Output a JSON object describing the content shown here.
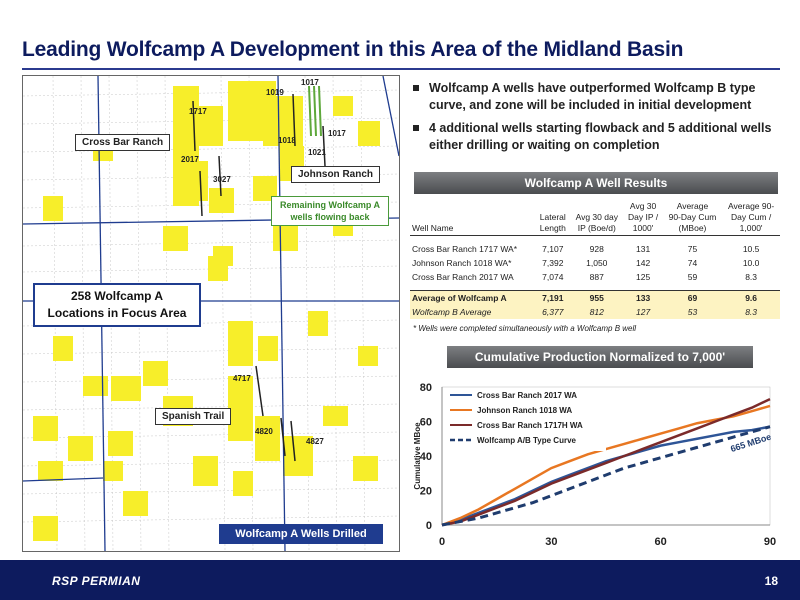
{
  "title": "Leading Wolfcamp A Development in this Area of the Midland Basin",
  "bullets": [
    "Wolfcamp A wells have outperformed Wolfcamp B type curve, and zone will be included in initial development",
    "4 additional wells starting flowback and 5 additional wells either drilling or waiting on completion"
  ],
  "map": {
    "labels": {
      "cross_bar": "Cross Bar Ranch",
      "johnson": "Johnson Ranch",
      "spanish": "Spanish Trail",
      "locations": "258 Wolfcamp A",
      "locations2": "Locations in Focus Area",
      "remaining": "Remaining Wolfcamp A",
      "remaining2": "wells flowing back",
      "drilled": "Wolfcamp A Wells Drilled"
    },
    "wells": [
      "1017",
      "1019",
      "1717",
      "1018",
      "1017",
      "1021",
      "2017",
      "3027",
      "4717",
      "4820",
      "4827"
    ]
  },
  "table_header": "Wolfcamp A Well Results",
  "table": {
    "columns": [
      "Well Name",
      "Lateral Length",
      "Avg 30 day IP (Boe/d)",
      "Avg 30 Day IP / 1000'",
      "Average 90-Day Cum (MBoe)",
      "Average 90-Day Cum / 1,000'"
    ],
    "col1": [
      "Well Name"
    ],
    "col2a": "Lateral",
    "col2b": "Length",
    "col3a": "Avg 30 day",
    "col3b": "IP (Boe/d)",
    "col4a": "Avg 30",
    "col4b": "Day IP /",
    "col4c": "1000'",
    "col5a": "Average",
    "col5b": "90-Day Cum",
    "col5c": "(MBoe)",
    "col6a": "Average 90-",
    "col6b": "Day Cum /",
    "col6c": "1,000'",
    "rows": [
      [
        "Cross Bar Ranch 1717 WA*",
        "7,107",
        "928",
        "131",
        "75",
        "10.5"
      ],
      [
        "Johnson Ranch 1018 WA*",
        "7,392",
        "1,050",
        "142",
        "74",
        "10.0"
      ],
      [
        "Cross Bar Ranch 2017 WA",
        "7,074",
        "887",
        "125",
        "59",
        "8.3"
      ]
    ],
    "average": [
      "Average of Wolfcamp A",
      "7,191",
      "955",
      "133",
      "69",
      "9.6"
    ],
    "type_curve": [
      "Wolfcamp B Average",
      "6,377",
      "812",
      "127",
      "53",
      "8.3"
    ],
    "footnote": "* Wells were completed simultaneously with a Wolfcamp B well"
  },
  "chart_header": "Cumulative Production Normalized to 7,000'",
  "chart_data": {
    "type": "line",
    "title": "Cumulative Production Normalized to 7,000'",
    "xlabel": "",
    "ylabel": "Cumulative MBoe",
    "xlim": [
      0,
      90
    ],
    "ylim": [
      0,
      80
    ],
    "xticks": [
      0,
      30,
      60,
      90
    ],
    "yticks": [
      0,
      20,
      40,
      60,
      80
    ],
    "annotation": "665 MBoe",
    "legend_position": "top-left",
    "series": [
      {
        "name": "Cross Bar Ranch 2017 WA",
        "color": "#2e5597",
        "dash": false,
        "x": [
          0,
          5,
          10,
          15,
          20,
          25,
          30,
          35,
          40,
          45,
          50,
          55,
          60,
          65,
          70,
          75,
          80,
          85,
          90
        ],
        "y": [
          0,
          3,
          7,
          11,
          15,
          20,
          25,
          29,
          33,
          37,
          40,
          43,
          46,
          48,
          50,
          52,
          54,
          55,
          57
        ]
      },
      {
        "name": "Johnson Ranch 1018 WA",
        "color": "#e87722",
        "dash": false,
        "x": [
          0,
          5,
          10,
          15,
          20,
          25,
          30,
          35,
          40,
          45,
          50,
          55,
          60,
          65,
          70,
          75,
          80,
          85,
          90
        ],
        "y": [
          0,
          4,
          9,
          15,
          21,
          27,
          33,
          37,
          41,
          44,
          47,
          50,
          53,
          56,
          59,
          61,
          63,
          66,
          69
        ]
      },
      {
        "name": "Cross Bar Ranch 1717H WA",
        "color": "#7b2a2a",
        "dash": false,
        "x": [
          0,
          5,
          10,
          15,
          20,
          25,
          30,
          35,
          40,
          45,
          50,
          55,
          60,
          65,
          70,
          75,
          80,
          85,
          90
        ],
        "y": [
          0,
          2,
          6,
          10,
          14,
          19,
          24,
          28,
          32,
          36,
          40,
          44,
          48,
          52,
          56,
          60,
          64,
          68,
          73
        ]
      },
      {
        "name": "Wolfcamp A/B Type Curve",
        "color": "#1f3c6e",
        "dash": true,
        "x": [
          0,
          5,
          10,
          15,
          20,
          25,
          30,
          35,
          40,
          45,
          50,
          55,
          60,
          65,
          70,
          75,
          80,
          85,
          90
        ],
        "y": [
          0,
          2,
          4,
          7,
          10,
          13,
          17,
          21,
          25,
          29,
          33,
          36,
          39,
          42,
          45,
          48,
          51,
          54,
          57
        ]
      }
    ]
  },
  "footer": {
    "page": "18",
    "logo": "RSP PERMIAN"
  }
}
